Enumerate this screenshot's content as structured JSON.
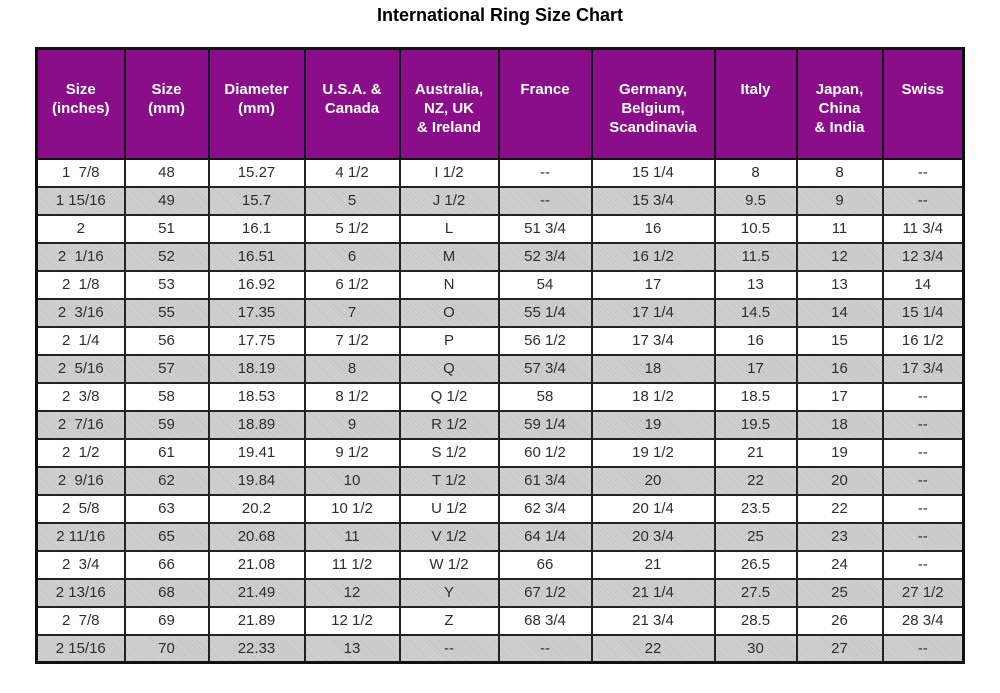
{
  "page_title": "International Ring Size Chart",
  "colors": {
    "header_bg": "#8a0e8a",
    "header_text": "#ffffff",
    "row_bg": "#ffffff",
    "row_alt_bg": "#c9c9c9",
    "border": "#111111",
    "cell_text": "#2e2e2e",
    "title_text": "#000000"
  },
  "chart_data": {
    "type": "table",
    "title": "International Ring Size Chart",
    "columns": [
      "Size (inches)",
      "Size (mm)",
      "Diameter (mm)",
      "U.S.A. & Canada",
      "Australia, NZ, UK & Ireland",
      "France",
      "Germany, Belgium, Scandinavia",
      "Italy",
      "Japan, China & India",
      "Swiss"
    ],
    "header_display": [
      "Size\n(inches)",
      "Size\n(mm)",
      "Diameter\n(mm)",
      "U.S.A. &\nCanada",
      "Australia,\nNZ, UK\n& Ireland",
      "France",
      "Germany,\nBelgium,\nScandinavia",
      "Italy",
      "Japan,\nChina\n& India",
      "Swiss"
    ],
    "rows": [
      [
        "1  7/8",
        "48",
        "15.27",
        "4 1/2",
        "I 1/2",
        "--",
        "15 1/4",
        "8",
        "8",
        "--"
      ],
      [
        "1 15/16",
        "49",
        "15.7",
        "5",
        "J 1/2",
        "--",
        "15 3/4",
        "9.5",
        "9",
        "--"
      ],
      [
        "2",
        "51",
        "16.1",
        "5 1/2",
        "L",
        "51 3/4",
        "16",
        "10.5",
        "11",
        "11 3/4"
      ],
      [
        "2  1/16",
        "52",
        "16.51",
        "6",
        "M",
        "52 3/4",
        "16 1/2",
        "11.5",
        "12",
        "12 3/4"
      ],
      [
        "2  1/8",
        "53",
        "16.92",
        "6 1/2",
        "N",
        "54",
        "17",
        "13",
        "13",
        "14"
      ],
      [
        "2  3/16",
        "55",
        "17.35",
        "7",
        "O",
        "55 1/4",
        "17 1/4",
        "14.5",
        "14",
        "15 1/4"
      ],
      [
        "2  1/4",
        "56",
        "17.75",
        "7 1/2",
        "P",
        "56 1/2",
        "17 3/4",
        "16",
        "15",
        "16 1/2"
      ],
      [
        "2  5/16",
        "57",
        "18.19",
        "8",
        "Q",
        "57 3/4",
        "18",
        "17",
        "16",
        "17 3/4"
      ],
      [
        "2  3/8",
        "58",
        "18.53",
        "8 1/2",
        "Q 1/2",
        "58",
        "18 1/2",
        "18.5",
        "17",
        "--"
      ],
      [
        "2  7/16",
        "59",
        "18.89",
        "9",
        "R 1/2",
        "59 1/4",
        "19",
        "19.5",
        "18",
        "--"
      ],
      [
        "2  1/2",
        "61",
        "19.41",
        "9 1/2",
        "S 1/2",
        "60 1/2",
        "19 1/2",
        "21",
        "19",
        "--"
      ],
      [
        "2  9/16",
        "62",
        "19.84",
        "10",
        "T 1/2",
        "61 3/4",
        "20",
        "22",
        "20",
        "--"
      ],
      [
        "2  5/8",
        "63",
        "20.2",
        "10 1/2",
        "U 1/2",
        "62 3/4",
        "20 1/4",
        "23.5",
        "22",
        "--"
      ],
      [
        "2 11/16",
        "65",
        "20.68",
        "11",
        "V 1/2",
        "64 1/4",
        "20 3/4",
        "25",
        "23",
        "--"
      ],
      [
        "2  3/4",
        "66",
        "21.08",
        "11 1/2",
        "W 1/2",
        "66",
        "21",
        "26.5",
        "24",
        "--"
      ],
      [
        "2 13/16",
        "68",
        "21.49",
        "12",
        "Y",
        "67 1/2",
        "21 1/4",
        "27.5",
        "25",
        "27 1/2"
      ],
      [
        "2  7/8",
        "69",
        "21.89",
        "12 1/2",
        "Z",
        "68 3/4",
        "21 3/4",
        "28.5",
        "26",
        "28 3/4"
      ],
      [
        "2 15/16",
        "70",
        "22.33",
        "13",
        "--",
        "--",
        "22",
        "30",
        "27",
        "--"
      ]
    ],
    "layout_hints": {
      "header_align": "top-center",
      "cell_align": "center",
      "stripe_pattern": "alternating white / dithered gray starting with white",
      "grid": "on"
    }
  }
}
